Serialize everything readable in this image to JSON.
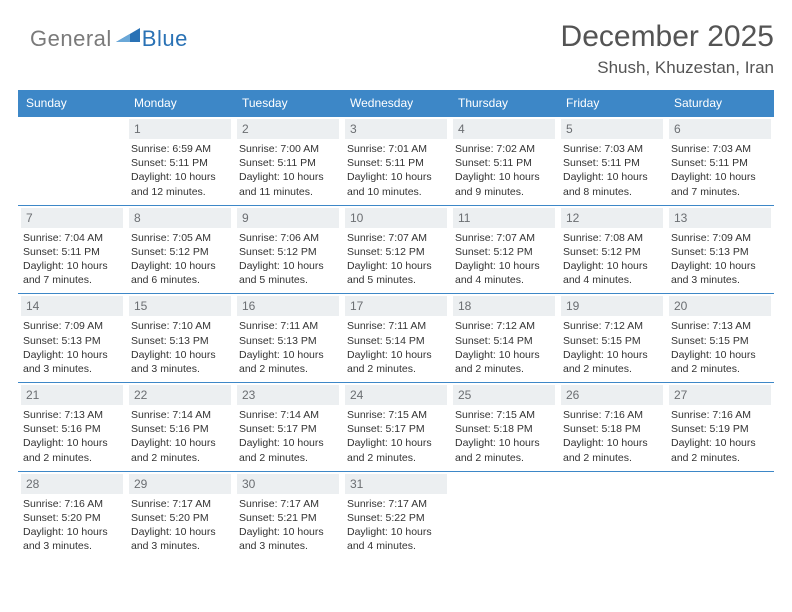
{
  "brand": {
    "general": "General",
    "blue": "Blue"
  },
  "title": "December 2025",
  "location": "Shush, Khuzestan, Iran",
  "colors": {
    "header_bg": "#3d87c7",
    "header_fg": "#ffffff",
    "daynum_bg": "#eceff1",
    "daynum_fg": "#6b6e72",
    "border": "#3d87c7",
    "title": "#545454",
    "brand_gray": "#7a7a7a",
    "brand_blue": "#2a72b5"
  },
  "dow": [
    "Sunday",
    "Monday",
    "Tuesday",
    "Wednesday",
    "Thursday",
    "Friday",
    "Saturday"
  ],
  "start_offset": 1,
  "days": [
    {
      "n": 1,
      "sr": "6:59 AM",
      "ss": "5:11 PM",
      "dl": "10 hours and 12 minutes."
    },
    {
      "n": 2,
      "sr": "7:00 AM",
      "ss": "5:11 PM",
      "dl": "10 hours and 11 minutes."
    },
    {
      "n": 3,
      "sr": "7:01 AM",
      "ss": "5:11 PM",
      "dl": "10 hours and 10 minutes."
    },
    {
      "n": 4,
      "sr": "7:02 AM",
      "ss": "5:11 PM",
      "dl": "10 hours and 9 minutes."
    },
    {
      "n": 5,
      "sr": "7:03 AM",
      "ss": "5:11 PM",
      "dl": "10 hours and 8 minutes."
    },
    {
      "n": 6,
      "sr": "7:03 AM",
      "ss": "5:11 PM",
      "dl": "10 hours and 7 minutes."
    },
    {
      "n": 7,
      "sr": "7:04 AM",
      "ss": "5:11 PM",
      "dl": "10 hours and 7 minutes."
    },
    {
      "n": 8,
      "sr": "7:05 AM",
      "ss": "5:12 PM",
      "dl": "10 hours and 6 minutes."
    },
    {
      "n": 9,
      "sr": "7:06 AM",
      "ss": "5:12 PM",
      "dl": "10 hours and 5 minutes."
    },
    {
      "n": 10,
      "sr": "7:07 AM",
      "ss": "5:12 PM",
      "dl": "10 hours and 5 minutes."
    },
    {
      "n": 11,
      "sr": "7:07 AM",
      "ss": "5:12 PM",
      "dl": "10 hours and 4 minutes."
    },
    {
      "n": 12,
      "sr": "7:08 AM",
      "ss": "5:12 PM",
      "dl": "10 hours and 4 minutes."
    },
    {
      "n": 13,
      "sr": "7:09 AM",
      "ss": "5:13 PM",
      "dl": "10 hours and 3 minutes."
    },
    {
      "n": 14,
      "sr": "7:09 AM",
      "ss": "5:13 PM",
      "dl": "10 hours and 3 minutes."
    },
    {
      "n": 15,
      "sr": "7:10 AM",
      "ss": "5:13 PM",
      "dl": "10 hours and 3 minutes."
    },
    {
      "n": 16,
      "sr": "7:11 AM",
      "ss": "5:13 PM",
      "dl": "10 hours and 2 minutes."
    },
    {
      "n": 17,
      "sr": "7:11 AM",
      "ss": "5:14 PM",
      "dl": "10 hours and 2 minutes."
    },
    {
      "n": 18,
      "sr": "7:12 AM",
      "ss": "5:14 PM",
      "dl": "10 hours and 2 minutes."
    },
    {
      "n": 19,
      "sr": "7:12 AM",
      "ss": "5:15 PM",
      "dl": "10 hours and 2 minutes."
    },
    {
      "n": 20,
      "sr": "7:13 AM",
      "ss": "5:15 PM",
      "dl": "10 hours and 2 minutes."
    },
    {
      "n": 21,
      "sr": "7:13 AM",
      "ss": "5:16 PM",
      "dl": "10 hours and 2 minutes."
    },
    {
      "n": 22,
      "sr": "7:14 AM",
      "ss": "5:16 PM",
      "dl": "10 hours and 2 minutes."
    },
    {
      "n": 23,
      "sr": "7:14 AM",
      "ss": "5:17 PM",
      "dl": "10 hours and 2 minutes."
    },
    {
      "n": 24,
      "sr": "7:15 AM",
      "ss": "5:17 PM",
      "dl": "10 hours and 2 minutes."
    },
    {
      "n": 25,
      "sr": "7:15 AM",
      "ss": "5:18 PM",
      "dl": "10 hours and 2 minutes."
    },
    {
      "n": 26,
      "sr": "7:16 AM",
      "ss": "5:18 PM",
      "dl": "10 hours and 2 minutes."
    },
    {
      "n": 27,
      "sr": "7:16 AM",
      "ss": "5:19 PM",
      "dl": "10 hours and 2 minutes."
    },
    {
      "n": 28,
      "sr": "7:16 AM",
      "ss": "5:20 PM",
      "dl": "10 hours and 3 minutes."
    },
    {
      "n": 29,
      "sr": "7:17 AM",
      "ss": "5:20 PM",
      "dl": "10 hours and 3 minutes."
    },
    {
      "n": 30,
      "sr": "7:17 AM",
      "ss": "5:21 PM",
      "dl": "10 hours and 3 minutes."
    },
    {
      "n": 31,
      "sr": "7:17 AM",
      "ss": "5:22 PM",
      "dl": "10 hours and 4 minutes."
    }
  ],
  "labels": {
    "sunrise": "Sunrise:",
    "sunset": "Sunset:",
    "daylight": "Daylight:"
  }
}
